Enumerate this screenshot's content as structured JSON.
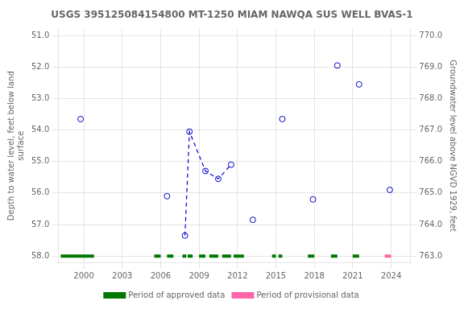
{
  "chart_data": {
    "type": "scatter",
    "title": "USGS 395125084154800 MT-1250 MIAM NAWQA SUS WELL BVAS-1",
    "ylabel": "Depth to water level, feet below land\nsurface",
    "y2label": "Groundwater level above NGVD 1929, feet",
    "xlim": [
      1998.0,
      2025.5
    ],
    "ylim": [
      58.2,
      50.8
    ],
    "y2lim": [
      762.8,
      770.2
    ],
    "xticks": [
      2000,
      2003,
      2006,
      2009,
      2012,
      2015,
      2018,
      2021,
      2024
    ],
    "yticks": [
      {
        "value": 51.0,
        "label": "51.0"
      },
      {
        "value": 52.0,
        "label": "52.0"
      },
      {
        "value": 53.0,
        "label": "53.0"
      },
      {
        "value": 54.0,
        "label": "54.0"
      },
      {
        "value": 55.0,
        "label": "55.0"
      },
      {
        "value": 56.0,
        "label": "56.0"
      },
      {
        "value": 57.0,
        "label": "57.0"
      },
      {
        "value": 58.0,
        "label": "58.0"
      }
    ],
    "y2ticks": [
      {
        "value": 763.0,
        "label": "763.0"
      },
      {
        "value": 764.0,
        "label": "764.0"
      },
      {
        "value": 765.0,
        "label": "765.0"
      },
      {
        "value": 766.0,
        "label": "766.0"
      },
      {
        "value": 767.0,
        "label": "767.0"
      },
      {
        "value": 768.0,
        "label": "768.0"
      },
      {
        "value": 769.0,
        "label": "769.0"
      },
      {
        "value": 770.0,
        "label": "770.0"
      }
    ],
    "grid": true,
    "legend": "bottom",
    "series": [
      {
        "type": "line",
        "line_style": "dashed",
        "color": "#0000cc",
        "x": [
          2007.9,
          2008.25,
          2009.5,
          2010.5,
          2011.5
        ],
        "values": [
          57.35,
          54.05,
          55.3,
          55.55,
          55.1
        ]
      },
      {
        "type": "scatter",
        "marker": "circle",
        "color": "#0000cc",
        "x": [
          1999.75,
          2006.5,
          2007.9,
          2008.25,
          2009.5,
          2010.5,
          2011.5,
          2013.2,
          2015.5,
          2017.9,
          2019.8,
          2021.5,
          2023.9
        ],
        "values": [
          53.65,
          56.1,
          57.35,
          54.05,
          55.3,
          55.55,
          55.1,
          56.85,
          53.65,
          56.2,
          51.95,
          52.55,
          55.9
        ]
      },
      {
        "name": "Period of approved data",
        "type": "line",
        "line_style": "solid",
        "color": "#007700",
        "x": [
          1998.2,
          2000.8,
          null,
          2005.5,
          2006.0,
          null,
          2006.5,
          2007.0,
          null,
          2007.7,
          2008.0,
          null,
          2008.1,
          2008.5,
          null,
          2009.0,
          2009.5,
          null,
          2009.8,
          2010.5,
          null,
          2010.8,
          2011.5,
          null,
          2011.7,
          2012.5,
          null,
          2014.7,
          2015.0,
          null,
          2015.2,
          2015.5,
          null,
          2017.5,
          2018.0,
          null,
          2019.3,
          2019.8,
          null,
          2021.0,
          2021.5
        ],
        "values": [
          58.0,
          58.0,
          null,
          58.0,
          58.0,
          null,
          58.0,
          58.0,
          null,
          58.0,
          58.0,
          null,
          58.0,
          58.0,
          null,
          58.0,
          58.0,
          null,
          58.0,
          58.0,
          null,
          58.0,
          58.0,
          null,
          58.0,
          58.0,
          null,
          58.0,
          58.0,
          null,
          58.0,
          58.0,
          null,
          58.0,
          58.0,
          null,
          58.0,
          58.0,
          null,
          58.0,
          58.0
        ]
      },
      {
        "name": "Period of provisional data",
        "type": "line",
        "line_style": "solid",
        "color": "#ff66aa",
        "x": [
          2023.5,
          2024.0
        ],
        "values": [
          58.0,
          58.0
        ]
      }
    ]
  }
}
